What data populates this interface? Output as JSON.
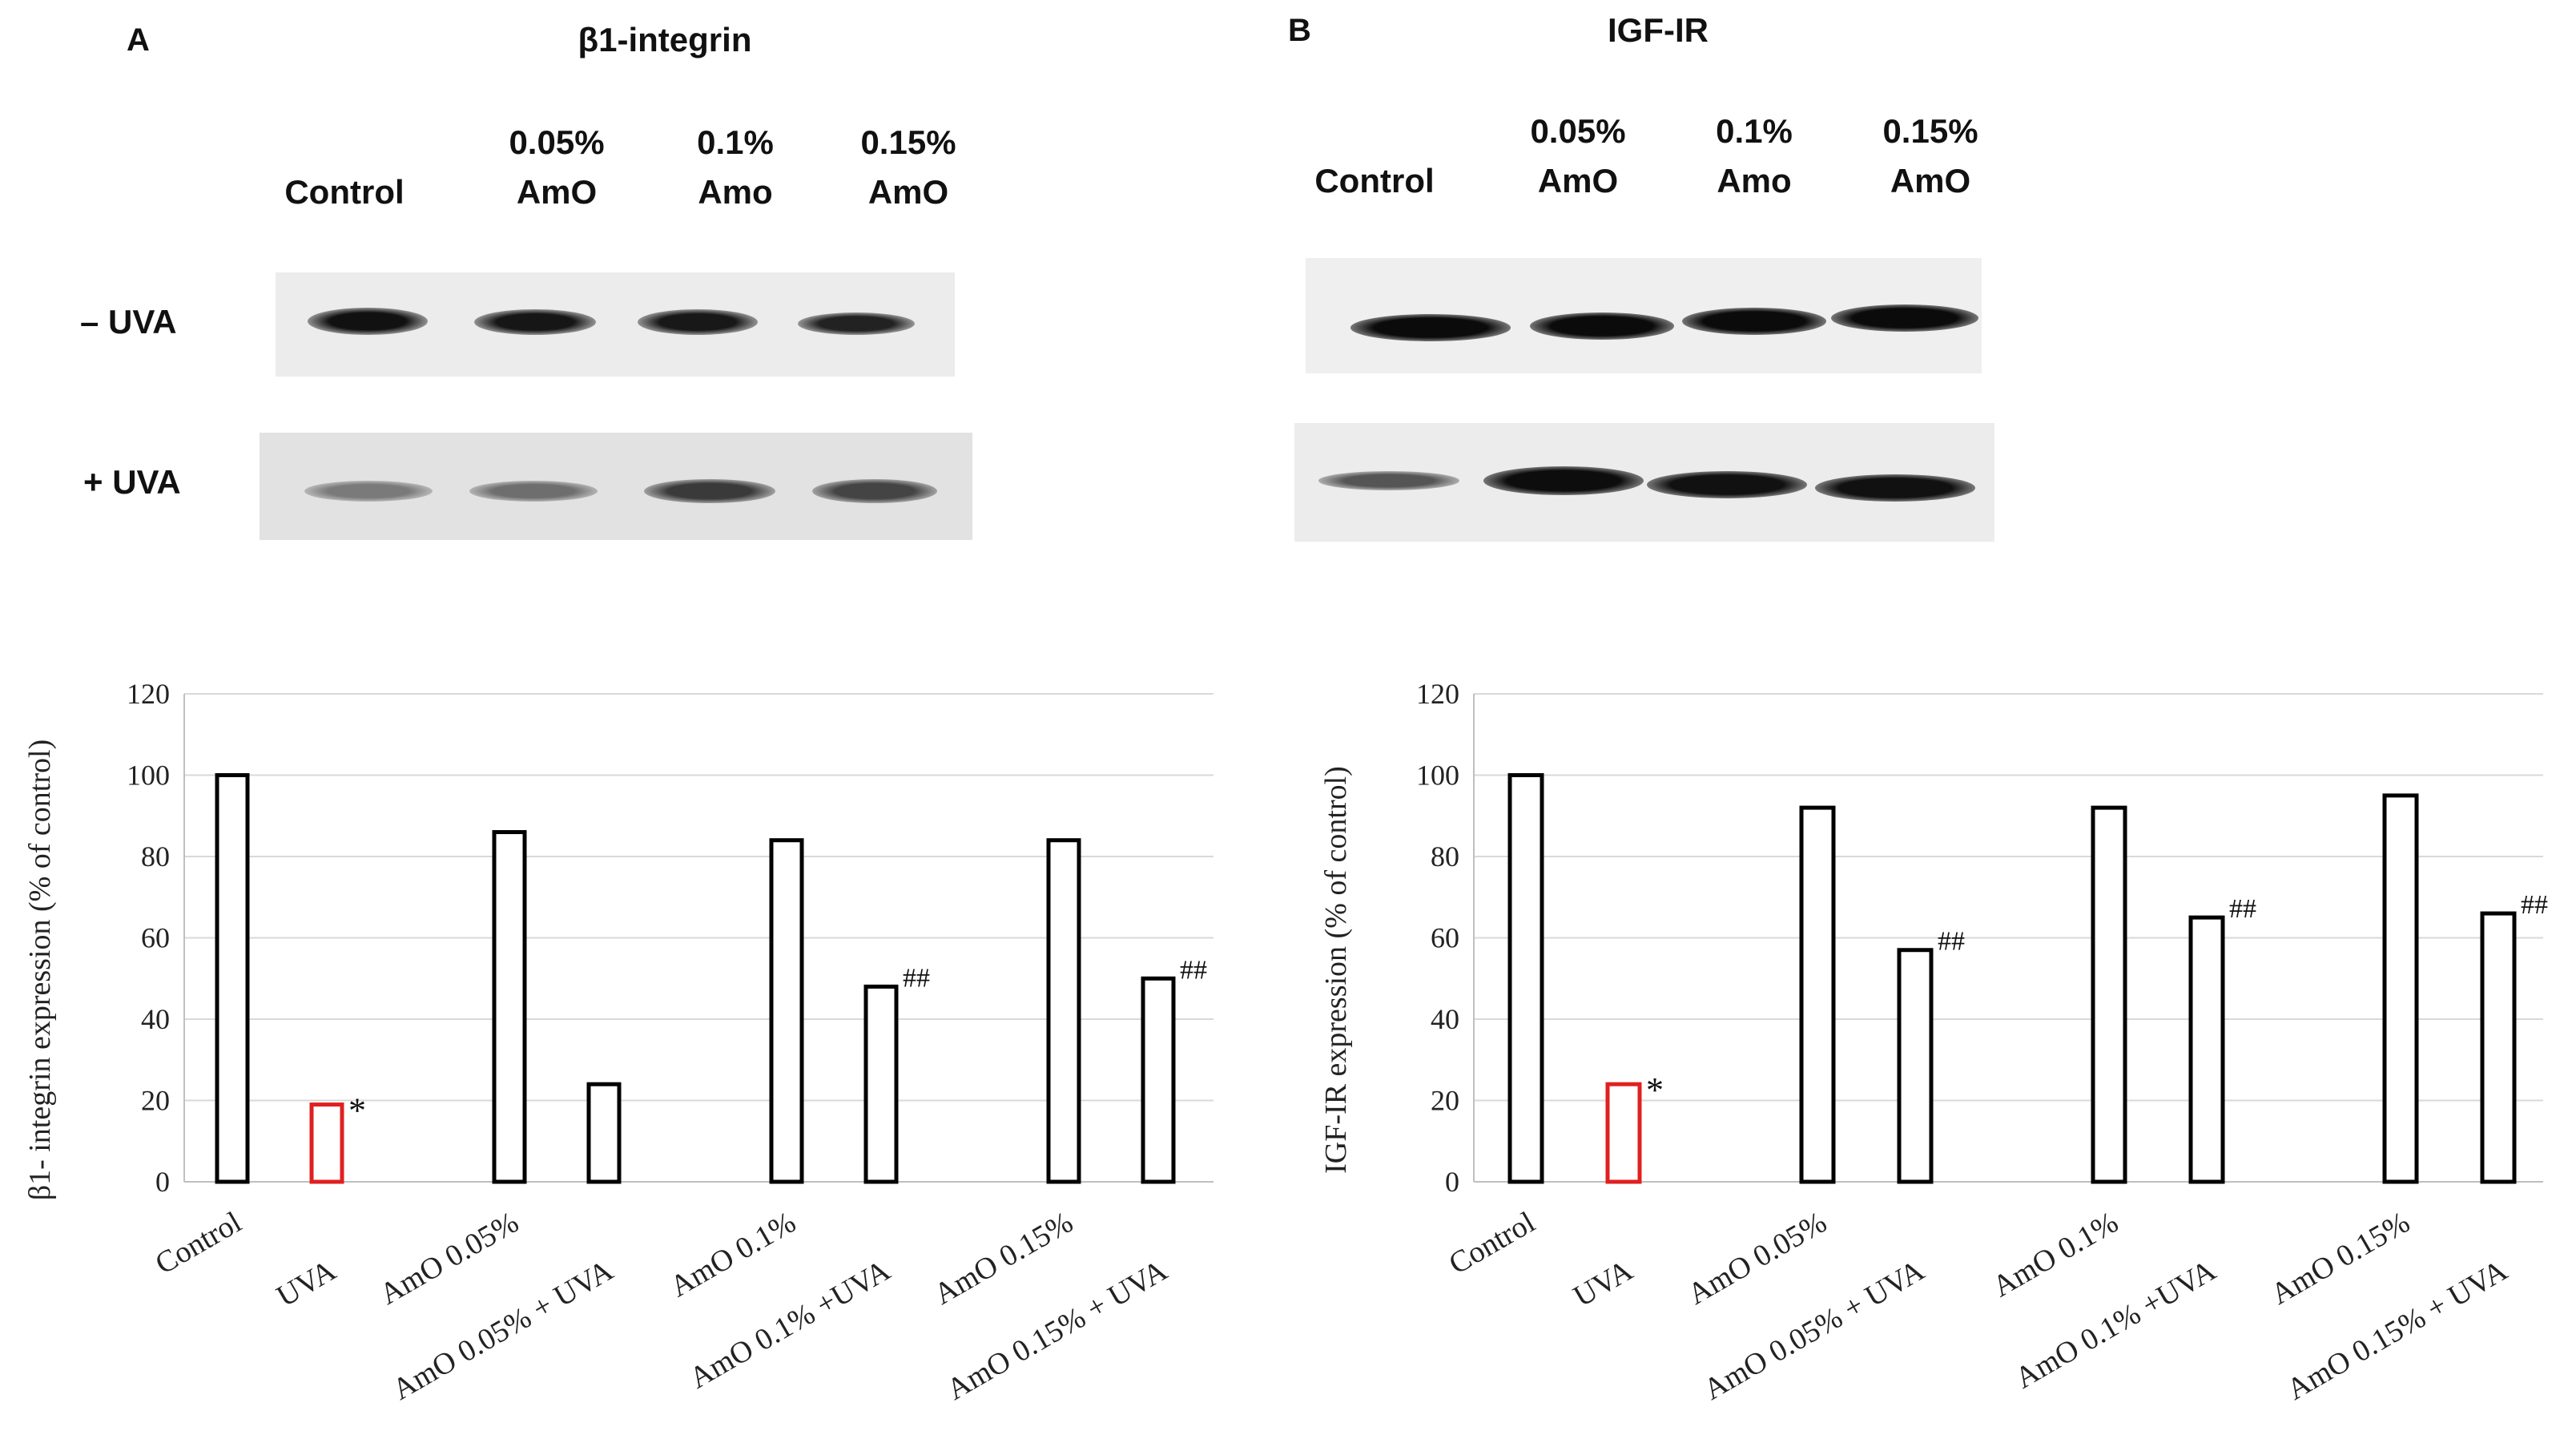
{
  "panels": [
    {
      "letter": "A",
      "blot": {
        "title": "β1-integrin",
        "lanes": [
          {
            "line1": "",
            "line2": "Control"
          },
          {
            "line1": "0.05%",
            "line2": "AmO"
          },
          {
            "line1": "0.1%",
            "line2": "Amo"
          },
          {
            "line1": "0.15%",
            "line2": "AmO"
          }
        ],
        "rows": [
          "– UVA",
          "+ UVA"
        ]
      }
    },
    {
      "letter": "B",
      "blot": {
        "title": "IGF-IR",
        "lanes": [
          {
            "line1": "",
            "line2": "Control"
          },
          {
            "line1": "0.05%",
            "line2": "AmO"
          },
          {
            "line1": "0.1%",
            "line2": "Amo"
          },
          {
            "line1": "0.15%",
            "line2": "AmO"
          }
        ],
        "rows": [
          "",
          ""
        ]
      }
    }
  ],
  "colors": {
    "bar_default": "#000000",
    "bar_highlight": "#e02020",
    "grid": "#d9d9d9",
    "axis": "#bfbfbf"
  },
  "chart_data": [
    {
      "type": "bar",
      "title": "",
      "xlabel": "",
      "ylabel": "β1- integrin expression (% of control)",
      "ylim": [
        0,
        120
      ],
      "yticks": [
        0,
        20,
        40,
        60,
        80,
        100,
        120
      ],
      "grid": true,
      "groups": [
        {
          "categories": [
            "Control",
            "UVA"
          ],
          "values": [
            100,
            19
          ],
          "annotations": [
            "",
            "*"
          ],
          "highlight": [
            false,
            true
          ]
        },
        {
          "categories": [
            "AmO 0.05%",
            "AmO 0.05% + UVA"
          ],
          "values": [
            86,
            24
          ],
          "annotations": [
            "",
            ""
          ],
          "highlight": [
            false,
            false
          ]
        },
        {
          "categories": [
            "AmO 0.1%",
            "AmO 0.1% +UVA"
          ],
          "values": [
            84,
            48
          ],
          "annotations": [
            "",
            "##"
          ],
          "highlight": [
            false,
            false
          ]
        },
        {
          "categories": [
            "AmO 0.15%",
            "AmO 0.15% + UVA"
          ],
          "values": [
            84,
            50
          ],
          "annotations": [
            "",
            "##"
          ],
          "highlight": [
            false,
            false
          ]
        }
      ]
    },
    {
      "type": "bar",
      "title": "",
      "xlabel": "",
      "ylabel": "IGF-IR  expression (% of control)",
      "ylim": [
        0,
        120
      ],
      "yticks": [
        0,
        20,
        40,
        60,
        80,
        100,
        120
      ],
      "grid": true,
      "groups": [
        {
          "categories": [
            "Control",
            "UVA"
          ],
          "values": [
            100,
            24
          ],
          "annotations": [
            "",
            "*"
          ],
          "highlight": [
            false,
            true
          ]
        },
        {
          "categories": [
            "AmO 0.05%",
            "AmO 0.05% + UVA"
          ],
          "values": [
            92,
            57
          ],
          "annotations": [
            "",
            "##"
          ],
          "highlight": [
            false,
            false
          ]
        },
        {
          "categories": [
            "AmO 0.1%",
            "AmO 0.1% +UVA"
          ],
          "values": [
            92,
            65
          ],
          "annotations": [
            "",
            "##"
          ],
          "highlight": [
            false,
            false
          ]
        },
        {
          "categories": [
            "AmO 0.15%",
            "AmO 0.15% + UVA"
          ],
          "values": [
            95,
            66
          ],
          "annotations": [
            "",
            "##"
          ],
          "highlight": [
            false,
            false
          ]
        }
      ]
    }
  ]
}
